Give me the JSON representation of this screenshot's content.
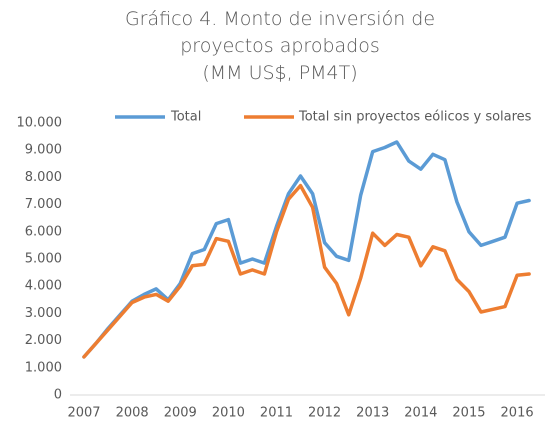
{
  "chart_data": {
    "type": "line",
    "title": "Gráfico 4. Monto de inversión de proyectos aprobados",
    "subtitle": "(MM US$, PM4T)",
    "categories": [
      "2007",
      null,
      null,
      null,
      "2008",
      null,
      null,
      null,
      "2009",
      null,
      null,
      null,
      "2010",
      null,
      null,
      null,
      "2011",
      null,
      null,
      null,
      "2012",
      null,
      null,
      null,
      "2013",
      null,
      null,
      null,
      "2014",
      null,
      null,
      null,
      "2015",
      null,
      null,
      null,
      "2016",
      null
    ],
    "series": [
      {
        "name": "Total",
        "color": "#5b9bd5",
        "values": [
          1400,
          1900,
          2450,
          2950,
          3450,
          3700,
          3900,
          3500,
          4100,
          5200,
          5350,
          6300,
          6450,
          4850,
          5000,
          4850,
          6200,
          7400,
          8050,
          7400,
          5600,
          5100,
          4950,
          7350,
          8950,
          9100,
          9300,
          8600,
          8300,
          8850,
          8650,
          7100,
          6000,
          5500,
          5650,
          5800,
          7050,
          7150
        ]
      },
      {
        "name": "Total sin proyectos eólicos y solares",
        "color": "#ed7d31",
        "values": [
          1400,
          1900,
          2400,
          2900,
          3400,
          3600,
          3700,
          3450,
          4000,
          4750,
          4800,
          5750,
          5650,
          4450,
          4600,
          4450,
          6000,
          7200,
          7700,
          6900,
          4700,
          4100,
          2950,
          4300,
          5950,
          5500,
          5900,
          5800,
          4750,
          5450,
          5300,
          4250,
          3800,
          3050,
          3150,
          3250,
          4400,
          4450
        ]
      }
    ],
    "ylim": [
      0,
      10000
    ],
    "yticks": [
      0,
      {
        "value": 1000,
        "label": "1.000"
      },
      {
        "value": 2000,
        "label": "2.000"
      },
      {
        "value": 3000,
        "label": "3.000"
      },
      {
        "value": 4000,
        "label": "4.000"
      },
      {
        "value": 5000,
        "label": "5.000"
      },
      {
        "value": 6000,
        "label": "6.000"
      },
      {
        "value": 7000,
        "label": "7.000"
      },
      {
        "value": 8000,
        "label": "8.000"
      },
      {
        "value": 9000,
        "label": "9.000"
      },
      {
        "value": 10000,
        "label": "10.000"
      }
    ],
    "legend": "top",
    "grid": false
  }
}
